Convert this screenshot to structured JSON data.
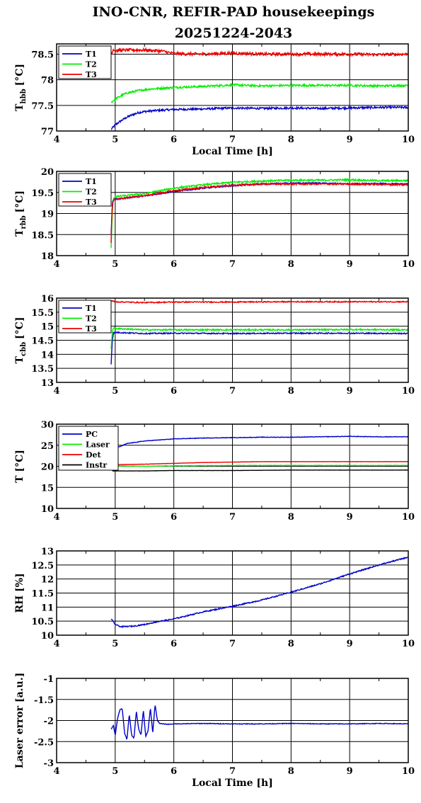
{
  "title_line1": "INO-CNR, REFIR-PAD housekeepings",
  "title_line2": "20251224-2043",
  "chart_data": [
    {
      "type": "line",
      "ylabel_main": "T",
      "ylabel_sub": "hbb",
      "ylabel_unit": "[°C]",
      "xlabel": "Local Time [h]",
      "xlim": [
        4,
        10
      ],
      "ylim": [
        77,
        78.7
      ],
      "xticks": [
        "4",
        "5",
        "6",
        "7",
        "8",
        "9",
        "10"
      ],
      "yticks": [
        {
          "v": 77,
          "label": "77"
        },
        {
          "v": 77.5,
          "label": "77.5"
        },
        {
          "v": 78,
          "label": "78"
        },
        {
          "v": 78.5,
          "label": "78.5"
        }
      ],
      "grid": true,
      "legend": "top-left",
      "series": [
        {
          "name": "T1",
          "color": "#0000cc",
          "noise": 0.02,
          "x": [
            4.93,
            5.0,
            5.1,
            5.2,
            5.3,
            5.4,
            5.5,
            5.7,
            6.0,
            6.5,
            7.0,
            7.5,
            8.0,
            8.5,
            9.0,
            9.5,
            10.0
          ],
          "y": [
            77.03,
            77.12,
            77.2,
            77.27,
            77.32,
            77.36,
            77.38,
            77.4,
            77.42,
            77.43,
            77.45,
            77.44,
            77.45,
            77.44,
            77.45,
            77.46,
            77.46
          ]
        },
        {
          "name": "T2",
          "color": "#00ee00",
          "noise": 0.02,
          "x": [
            4.93,
            5.0,
            5.1,
            5.2,
            5.4,
            5.6,
            6.0,
            6.5,
            7.0,
            7.5,
            8.0,
            8.5,
            9.0,
            9.5,
            10.0
          ],
          "y": [
            77.56,
            77.62,
            77.69,
            77.74,
            77.79,
            77.82,
            77.85,
            77.87,
            77.9,
            77.88,
            77.89,
            77.89,
            77.89,
            77.88,
            77.89
          ]
        },
        {
          "name": "T3",
          "color": "#ee0000",
          "noise": 0.03,
          "x": [
            4.93,
            4.97,
            5.0,
            5.2,
            5.5,
            5.8,
            6.0,
            6.5,
            7.0,
            7.5,
            8.0,
            8.5,
            9.0,
            9.5,
            10.0
          ],
          "y": [
            78.5,
            78.6,
            78.57,
            78.58,
            78.58,
            78.56,
            78.51,
            78.5,
            78.52,
            78.5,
            78.5,
            78.5,
            78.5,
            78.49,
            78.5
          ]
        }
      ]
    },
    {
      "type": "line",
      "ylabel_main": "T",
      "ylabel_sub": "rbb",
      "ylabel_unit": "[°C]",
      "xlabel": "",
      "xlim": [
        4,
        10
      ],
      "ylim": [
        18,
        20
      ],
      "xticks": [
        "4",
        "5",
        "6",
        "7",
        "8",
        "9",
        "10"
      ],
      "yticks": [
        {
          "v": 18,
          "label": "18"
        },
        {
          "v": 18.5,
          "label": "18.5"
        },
        {
          "v": 19,
          "label": "19"
        },
        {
          "v": 19.5,
          "label": "19.5"
        },
        {
          "v": 20,
          "label": "20"
        }
      ],
      "grid": true,
      "legend": "top-left",
      "series": [
        {
          "name": "T1",
          "color": "#0000cc",
          "noise": 0.015,
          "x": [
            4.93,
            4.95,
            4.97,
            5.0,
            5.5,
            6.0,
            6.5,
            7.0,
            7.5,
            8.0,
            8.5,
            9.0,
            9.5,
            10.0
          ],
          "y": [
            18.5,
            19.25,
            19.33,
            19.34,
            19.42,
            19.52,
            19.6,
            19.66,
            19.7,
            19.72,
            19.72,
            19.7,
            19.71,
            19.7
          ]
        },
        {
          "name": "T2",
          "color": "#00ee00",
          "noise": 0.02,
          "x": [
            4.93,
            4.94,
            4.96,
            4.98,
            5.0,
            5.5,
            6.0,
            6.5,
            7.0,
            7.5,
            8.0,
            8.5,
            9.0,
            9.5,
            10.0
          ],
          "y": [
            18.18,
            18.6,
            19.3,
            19.38,
            19.4,
            19.47,
            19.6,
            19.68,
            19.74,
            19.77,
            19.79,
            19.79,
            19.8,
            19.78,
            19.78
          ]
        },
        {
          "name": "T3",
          "color": "#ee0000",
          "noise": 0.02,
          "x": [
            4.93,
            4.94,
            4.96,
            4.98,
            5.0,
            5.5,
            6.0,
            6.5,
            7.0,
            7.5,
            8.0,
            8.5,
            9.0,
            9.5,
            10.0
          ],
          "y": [
            18.3,
            18.9,
            19.28,
            19.33,
            19.34,
            19.42,
            19.54,
            19.62,
            19.67,
            19.7,
            19.7,
            19.7,
            19.7,
            19.69,
            19.68
          ]
        }
      ]
    },
    {
      "type": "line",
      "ylabel_main": "T",
      "ylabel_sub": "cbb",
      "ylabel_unit": "[°C]",
      "xlabel": "",
      "xlim": [
        4,
        10
      ],
      "ylim": [
        13,
        16
      ],
      "xticks": [
        "4",
        "5",
        "6",
        "7",
        "8",
        "9",
        "10"
      ],
      "yticks": [
        {
          "v": 13,
          "label": "13"
        },
        {
          "v": 13.5,
          "label": "13.5"
        },
        {
          "v": 14,
          "label": "14"
        },
        {
          "v": 14.5,
          "label": "14.5"
        },
        {
          "v": 15,
          "label": "15"
        },
        {
          "v": 15.5,
          "label": "15.5"
        },
        {
          "v": 16,
          "label": "16"
        }
      ],
      "grid": true,
      "legend": "top-left",
      "series": [
        {
          "name": "T1",
          "color": "#0000cc",
          "noise": 0.02,
          "x": [
            4.93,
            4.95,
            4.97,
            5.0,
            5.5,
            6.0,
            7.0,
            8.0,
            9.0,
            10.0
          ],
          "y": [
            13.65,
            14.5,
            14.75,
            14.78,
            14.74,
            14.75,
            14.74,
            14.75,
            14.75,
            14.74
          ]
        },
        {
          "name": "T2",
          "color": "#00ee00",
          "noise": 0.025,
          "x": [
            4.93,
            4.95,
            4.97,
            5.0,
            5.5,
            6.0,
            7.0,
            8.0,
            9.0,
            10.0
          ],
          "y": [
            14.2,
            14.8,
            14.95,
            14.92,
            14.87,
            14.87,
            14.87,
            14.87,
            14.88,
            14.87
          ]
        },
        {
          "name": "T3",
          "color": "#ee0000",
          "noise": 0.02,
          "x": [
            4.93,
            5.0,
            5.5,
            6.0,
            7.0,
            8.0,
            9.0,
            10.0
          ],
          "y": [
            15.91,
            15.87,
            15.84,
            15.86,
            15.86,
            15.87,
            15.87,
            15.87
          ]
        }
      ]
    },
    {
      "type": "line",
      "ylabel_main": "T [°C]",
      "ylabel_sub": "",
      "ylabel_unit": "",
      "xlabel": "",
      "xlim": [
        4,
        10
      ],
      "ylim": [
        10,
        30
      ],
      "xticks": [
        "4",
        "5",
        "6",
        "7",
        "8",
        "9",
        "10"
      ],
      "yticks": [
        {
          "v": 10,
          "label": "10"
        },
        {
          "v": 15,
          "label": "15"
        },
        {
          "v": 20,
          "label": "20"
        },
        {
          "v": 25,
          "label": "25"
        },
        {
          "v": 30,
          "label": "30"
        }
      ],
      "grid": true,
      "legend": "top-left",
      "series": [
        {
          "name": "PC",
          "color": "#0000cc",
          "noise": 0.06,
          "x": [
            4.95,
            5.0,
            5.2,
            5.5,
            5.8,
            6.0,
            6.5,
            7.0,
            7.5,
            8.0,
            8.5,
            9.0,
            9.5,
            10.0
          ],
          "y": [
            23.5,
            24.2,
            25.4,
            26.0,
            26.3,
            26.5,
            26.7,
            26.8,
            26.9,
            26.9,
            27.0,
            27.1,
            27.0,
            27.0
          ]
        },
        {
          "name": "Laser",
          "color": "#00ee00",
          "noise": 0.05,
          "x": [
            4.95,
            5.5,
            6.0,
            7.0,
            8.0,
            9.0,
            10.0
          ],
          "y": [
            20.1,
            20.0,
            20.1,
            20.2,
            20.2,
            20.2,
            20.2
          ]
        },
        {
          "name": "Det",
          "color": "#ee0000",
          "noise": 0.03,
          "x": [
            4.95,
            5.0,
            5.5,
            6.0,
            6.5,
            7.0,
            7.5,
            8.0,
            9.0,
            10.0
          ],
          "y": [
            20.3,
            20.4,
            20.5,
            20.7,
            20.9,
            21.0,
            21.1,
            21.1,
            21.1,
            21.1
          ]
        },
        {
          "name": "Instr",
          "color": "#000000",
          "noise": 0.02,
          "x": [
            4.95,
            5.5,
            6.0,
            7.0,
            8.0,
            9.0,
            10.0
          ],
          "y": [
            18.9,
            18.9,
            19.0,
            19.0,
            19.1,
            19.1,
            19.1
          ]
        }
      ]
    },
    {
      "type": "line",
      "ylabel_main": "RH [%]",
      "ylabel_sub": "",
      "ylabel_unit": "",
      "xlabel": "",
      "xlim": [
        4,
        10
      ],
      "ylim": [
        10,
        13
      ],
      "xticks": [
        "4",
        "5",
        "6",
        "7",
        "8",
        "9",
        "10"
      ],
      "yticks": [
        {
          "v": 10,
          "label": "10"
        },
        {
          "v": 10.5,
          "label": "10.5"
        },
        {
          "v": 11,
          "label": "11"
        },
        {
          "v": 11.5,
          "label": "11.5"
        },
        {
          "v": 12,
          "label": "12"
        },
        {
          "v": 12.5,
          "label": "12.5"
        },
        {
          "v": 13,
          "label": "13"
        }
      ],
      "grid": true,
      "legend": "none",
      "series": [
        {
          "name": "",
          "color": "#0000cc",
          "noise": 0.02,
          "x": [
            4.93,
            5.0,
            5.1,
            5.3,
            5.5,
            5.7,
            6.0,
            6.5,
            7.0,
            7.5,
            8.0,
            8.5,
            9.0,
            9.5,
            10.0
          ],
          "y": [
            10.58,
            10.38,
            10.3,
            10.32,
            10.38,
            10.47,
            10.58,
            10.83,
            11.03,
            11.25,
            11.53,
            11.83,
            12.18,
            12.5,
            12.78
          ]
        }
      ]
    },
    {
      "type": "line",
      "ylabel_main": "Laser error [a.u.]",
      "ylabel_sub": "",
      "ylabel_unit": "",
      "xlabel": "Local Time [h]",
      "xlim": [
        4,
        10
      ],
      "ylim": [
        -3,
        -1
      ],
      "xticks": [
        "4",
        "5",
        "6",
        "7",
        "8",
        "9",
        "10"
      ],
      "yticks": [
        {
          "v": -3,
          "label": "-3"
        },
        {
          "v": -2.5,
          "label": "-2.5"
        },
        {
          "v": -2,
          "label": "-2"
        },
        {
          "v": -1.5,
          "label": "-1.5"
        },
        {
          "v": -1,
          "label": "-1"
        }
      ],
      "grid": true,
      "legend": "none",
      "series": [
        {
          "name": "",
          "color": "#0000cc",
          "noise": 0.008,
          "x": [
            4.93,
            4.97,
            5.0,
            5.04,
            5.08,
            5.12,
            5.16,
            5.2,
            5.24,
            5.28,
            5.32,
            5.36,
            5.4,
            5.44,
            5.48,
            5.52,
            5.56,
            5.6,
            5.64,
            5.68,
            5.72,
            5.76,
            5.8,
            5.9,
            6.0,
            6.5,
            7.0,
            7.5,
            8.0,
            8.5,
            9.0,
            9.5,
            10.0
          ],
          "y": [
            -2.2,
            -2.12,
            -2.35,
            -1.95,
            -1.75,
            -1.72,
            -2.3,
            -2.45,
            -1.85,
            -2.35,
            -2.42,
            -1.78,
            -2.2,
            -2.35,
            -1.75,
            -2.38,
            -2.25,
            -1.7,
            -2.3,
            -1.62,
            -2.0,
            -2.07,
            -2.08,
            -2.09,
            -2.08,
            -2.07,
            -2.08,
            -2.08,
            -2.07,
            -2.08,
            -2.08,
            -2.07,
            -2.08
          ]
        }
      ]
    }
  ]
}
